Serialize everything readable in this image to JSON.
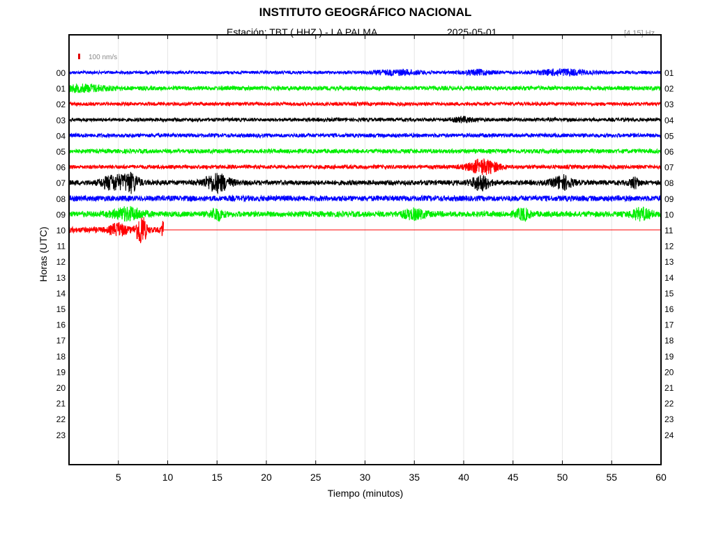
{
  "header": {
    "title": "INSTITUTO GEOGRÁFICO NACIONAL",
    "station": "Estación:  TBT ( HHZ ) - LA PALMA",
    "date": "2025-05-01",
    "band": "[4 15] Hz"
  },
  "chart_data": {
    "type": "line",
    "title": "INSTITUTO GEOGRÁFICO NACIONAL",
    "xlabel": "Tiempo (minutos)",
    "ylabel": "Horas (UTC)",
    "xlim": [
      0,
      60
    ],
    "x_ticks": [
      5,
      10,
      15,
      20,
      25,
      30,
      35,
      40,
      45,
      50,
      55,
      60
    ],
    "y_ticks_left": [
      "00",
      "01",
      "02",
      "03",
      "04",
      "05",
      "06",
      "07",
      "08",
      "09",
      "10",
      "11",
      "12",
      "13",
      "14",
      "15",
      "16",
      "17",
      "18",
      "19",
      "20",
      "21",
      "22",
      "23"
    ],
    "y_ticks_right": [
      "01",
      "02",
      "03",
      "04",
      "05",
      "06",
      "07",
      "08",
      "09",
      "10",
      "11",
      "12",
      "13",
      "14",
      "15",
      "16",
      "17",
      "18",
      "19",
      "20",
      "21",
      "22",
      "23",
      "24"
    ],
    "grid": true,
    "scale_label": "100 nm/s",
    "scale_color": "#e00000",
    "color_cycle": [
      "#0000ff",
      "#00ee00",
      "#ff0000",
      "#000000"
    ],
    "traces": [
      {
        "hour": "00",
        "color": "#0000ff",
        "end_min": 60,
        "amp": 2.2,
        "bursts": [
          {
            "t": 33.5,
            "w": 2.5,
            "a": 3
          },
          {
            "t": 41.5,
            "w": 1.5,
            "a": 3
          },
          {
            "t": 50,
            "w": 2.5,
            "a": 4
          }
        ]
      },
      {
        "hour": "01",
        "color": "#00ee00",
        "end_min": 60,
        "amp": 3,
        "bursts": [
          {
            "t": 1.5,
            "w": 2.5,
            "a": 4
          }
        ]
      },
      {
        "hour": "02",
        "color": "#ff0000",
        "end_min": 60,
        "amp": 2.5,
        "bursts": []
      },
      {
        "hour": "03",
        "color": "#000000",
        "end_min": 60,
        "amp": 2.5,
        "bursts": [
          {
            "t": 40,
            "w": 1,
            "a": 3
          }
        ]
      },
      {
        "hour": "04",
        "color": "#0000ff",
        "end_min": 60,
        "amp": 2.8,
        "bursts": []
      },
      {
        "hour": "05",
        "color": "#00ee00",
        "end_min": 60,
        "amp": 3,
        "bursts": []
      },
      {
        "hour": "06",
        "color": "#ff0000",
        "end_min": 60,
        "amp": 2.8,
        "bursts": [
          {
            "t": 42,
            "w": 1.5,
            "a": 10
          }
        ]
      },
      {
        "hour": "07",
        "color": "#000000",
        "end_min": 60,
        "amp": 3.5,
        "bursts": [
          {
            "t": 4.5,
            "w": 1.2,
            "a": 10
          },
          {
            "t": 6.3,
            "w": 0.8,
            "a": 12
          },
          {
            "t": 15,
            "w": 1.3,
            "a": 12
          },
          {
            "t": 41.7,
            "w": 0.9,
            "a": 10
          },
          {
            "t": 50,
            "w": 1,
            "a": 9
          },
          {
            "t": 57.3,
            "w": 0.5,
            "a": 7
          }
        ]
      },
      {
        "hour": "08",
        "color": "#0000ff",
        "end_min": 60,
        "amp": 4,
        "bursts": []
      },
      {
        "hour": "09",
        "color": "#00ee00",
        "end_min": 60,
        "amp": 4,
        "bursts": [
          {
            "t": 6,
            "w": 1.5,
            "a": 8
          },
          {
            "t": 15,
            "w": 0.6,
            "a": 8
          },
          {
            "t": 35,
            "w": 1.2,
            "a": 6
          },
          {
            "t": 46,
            "w": 0.7,
            "a": 7
          },
          {
            "t": 58,
            "w": 1,
            "a": 7
          }
        ]
      },
      {
        "hour": "10",
        "color": "#ff0000",
        "end_min": 9.6,
        "amp": 4,
        "bursts": [
          {
            "t": 5,
            "w": 0.8,
            "a": 8
          },
          {
            "t": 7.3,
            "w": 0.5,
            "a": 22
          },
          {
            "t": 9.5,
            "w": 0.1,
            "a": 14
          }
        ]
      }
    ]
  }
}
